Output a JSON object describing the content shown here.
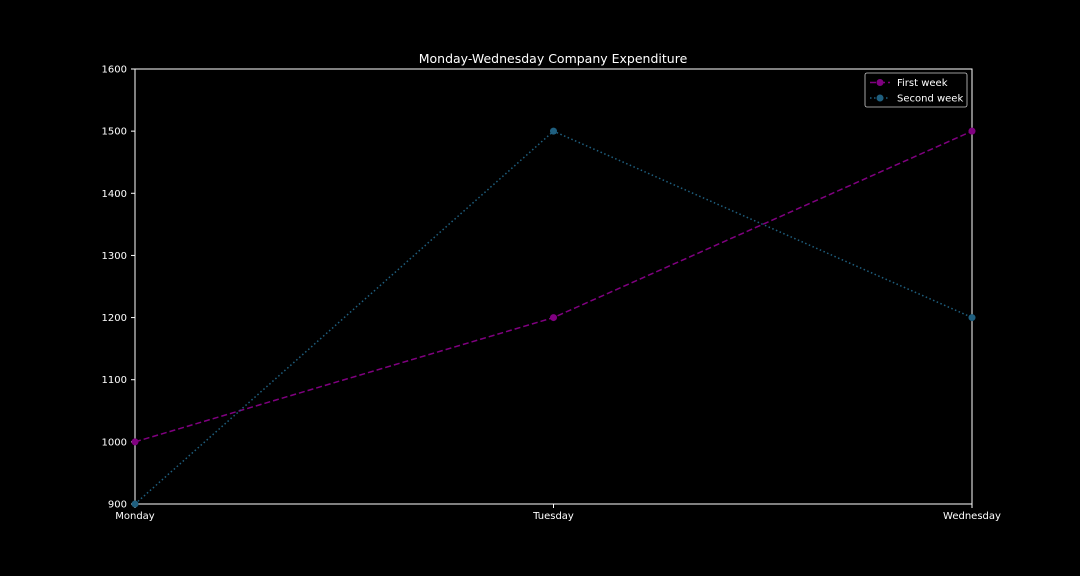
{
  "chart_data": {
    "type": "line",
    "title": "Monday-Wednesday Company Expenditure",
    "xlabel": "",
    "ylabel": "",
    "categories": [
      "Monday",
      "Tuesday",
      "Wednesday"
    ],
    "ylim": [
      900,
      1600
    ],
    "yticks": [
      "900",
      "1000",
      "1100",
      "1200",
      "1300",
      "1400",
      "1500",
      "1600"
    ],
    "grid": false,
    "legend_position": "top-right",
    "series": [
      {
        "name": "First week",
        "values": [
          1000,
          1200,
          1500
        ],
        "color": "#800080",
        "line_style": "dashed",
        "marker": "circle"
      },
      {
        "name": "Second week",
        "values": [
          900,
          1500,
          1200
        ],
        "color": "#1f5f7f",
        "line_style": "dotted",
        "marker": "circle"
      }
    ]
  },
  "colors": {
    "background": "#000000",
    "axis": "#ffffff",
    "text": "#ffffff"
  }
}
